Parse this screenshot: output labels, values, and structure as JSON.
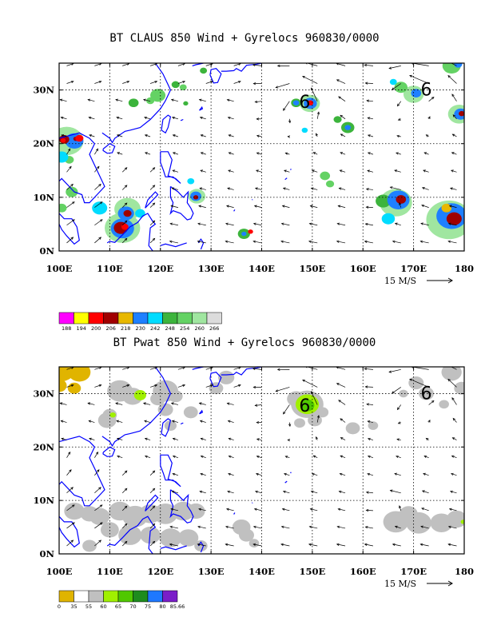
{
  "panels": [
    {
      "title": "BT CLAUS 850 Wind + Gyrelocs 960830/0000",
      "field": "CLAUS",
      "lat_labels": [
        "0N",
        "10N",
        "20N",
        "30N"
      ],
      "lon_labels": [
        "100E",
        "110E",
        "120E",
        "130E",
        "140E",
        "150E",
        "160E",
        "170E",
        "180"
      ],
      "scale_label": "15 M/S",
      "gyre_markers": [
        {
          "label": "6",
          "lon": 148.5,
          "lat": 28.0
        },
        {
          "label": "6",
          "lon": 172.5,
          "lat": 30.3
        }
      ],
      "colorbar": {
        "labels": [
          "188",
          "194",
          "200",
          "206",
          "218",
          "230",
          "242",
          "248",
          "254",
          "260",
          "266"
        ],
        "colors": [
          "#ff00ff",
          "#ffff00",
          "#ff0000",
          "#a00000",
          "#e8b800",
          "#1e80ff",
          "#00dcff",
          "#3cb43c",
          "#64d264",
          "#a0e6a0",
          "#dcdcdc"
        ]
      }
    },
    {
      "title": "BT Pwat 850 Wind + Gyrelocs 960830/0000",
      "field": "Pwat",
      "lat_labels": [
        "0N",
        "10N",
        "20N",
        "30N"
      ],
      "lon_labels": [
        "100E",
        "110E",
        "120E",
        "130E",
        "140E",
        "150E",
        "160E",
        "170E",
        "180"
      ],
      "scale_label": "15 M/S",
      "gyre_markers": [
        {
          "label": "6",
          "lon": 148.5,
          "lat": 28.0
        },
        {
          "label": "6",
          "lon": 172.5,
          "lat": 30.3
        }
      ],
      "colorbar": {
        "labels": [
          "0",
          "35",
          "55",
          "60",
          "65",
          "70",
          "75",
          "80",
          "85.66"
        ],
        "colors": [
          "#e0b400",
          "#ffffff",
          "#c0c0c0",
          "#a0f000",
          "#50c800",
          "#1e8c1e",
          "#1e78ff",
          "#7a1ec8"
        ]
      }
    }
  ],
  "colors": {
    "coast": "#0000ff",
    "grid": "#000000"
  }
}
